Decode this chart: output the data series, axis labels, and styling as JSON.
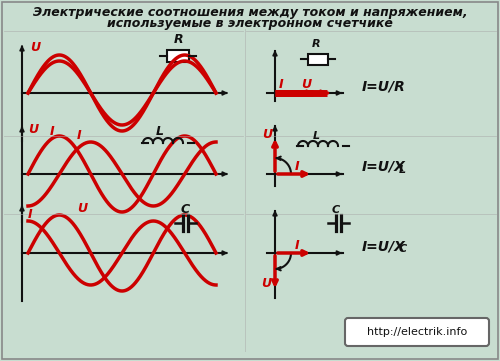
{
  "title_line1": "Электрические соотношения между током и напряжением,",
  "title_line2": "используемые в электронном счетчике",
  "bg_color": "#c8ddd0",
  "red_color": "#cc0000",
  "black_color": "#111111",
  "url_text": "http://electrik.info",
  "label_R": "R",
  "label_L": "L",
  "label_C": "C",
  "eq_R": "I=U/R",
  "eq_L": "I=U/X",
  "eq_L_sub": "L",
  "eq_C": "I=U/X",
  "eq_C_sub": "C",
  "border_color": "#888888"
}
